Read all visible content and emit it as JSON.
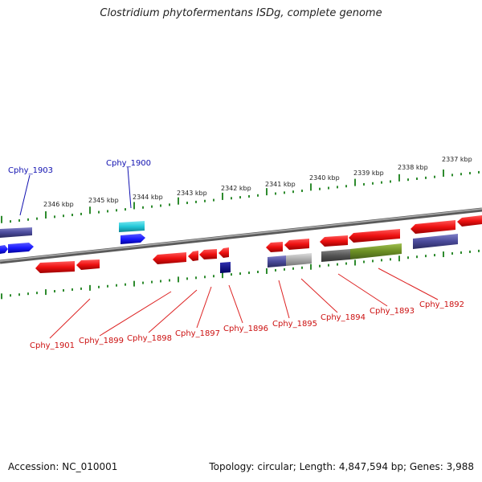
{
  "title": "Clostridium phytofermentans ISDg, complete genome",
  "accession": "Accession: NC_010001",
  "stats": "Topology: circular; Length: 4,847,594 bp; Genes: 3,988",
  "ticks": [
    "2346 kbp",
    "2345 kbp",
    "2344 kbp",
    "2343 kbp",
    "2342 kbp",
    "2341 kbp",
    "2340 kbp",
    "2339 kbp",
    "2338 kbp",
    "2337 kbp"
  ],
  "gene_labels": {
    "forward": [
      "Cphy_1903",
      "Cphy_1900"
    ],
    "reverse": [
      "Cphy_1901",
      "Cphy_1899",
      "Cphy_1898",
      "Cphy_1897",
      "Cphy_1896",
      "Cphy_1895",
      "Cphy_1894",
      "Cphy_1893",
      "Cphy_1892"
    ]
  },
  "colors": {
    "forward_gene": "#1a1aff",
    "reverse_gene": "#ee1111",
    "rna_cyan": "#22c8d8",
    "other_purple": "#4a4a9a",
    "highlight_green": "#6b8e23",
    "grey": "#aaaaaa",
    "dark_grey": "#555555",
    "navy": "#000080",
    "backbone": "#808080",
    "tick_green": "#2e8b2e"
  }
}
